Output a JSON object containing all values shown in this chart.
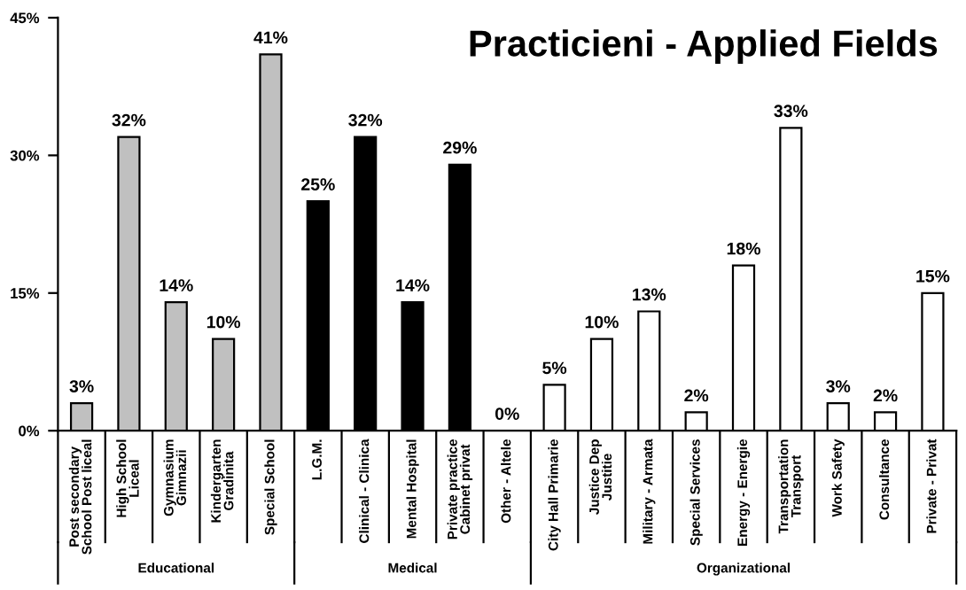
{
  "chart_data": {
    "type": "bar",
    "title": "Practicieni - Applied Fields",
    "categories": [
      "Post secondary\nSchool Post liceal",
      "High School\nLiceal",
      "Gymnasium\nGimnazii",
      "Kindergarten\nGradinita",
      "Special School",
      "L.G.M.",
      "Clinical - Clinica",
      "Mental Hospital",
      "Private practice\nCabinet privat",
      "Other - Altele",
      "City Hall Primarie",
      "Justice Dep\nJustitie",
      "Military - Armata",
      "Special Services",
      "Energy - Energie",
      "Transportation\nTransport",
      "Work Safety",
      "Consultance",
      "Private - Privat"
    ],
    "values": [
      3,
      32,
      14,
      10,
      41,
      25,
      32,
      14,
      29,
      0,
      5,
      10,
      13,
      2,
      18,
      33,
      3,
      2,
      15
    ],
    "colors": [
      "#c0c0c0",
      "#c0c0c0",
      "#c0c0c0",
      "#c0c0c0",
      "#c0c0c0",
      "#000000",
      "#000000",
      "#000000",
      "#000000",
      "#000000",
      "#ffffff",
      "#ffffff",
      "#ffffff",
      "#ffffff",
      "#ffffff",
      "#ffffff",
      "#ffffff",
      "#ffffff",
      "#ffffff"
    ],
    "value_labels": [
      "3%",
      "32%",
      "14%",
      "10%",
      "41%",
      "25%",
      "32%",
      "14%",
      "29%",
      "0%",
      "5%",
      "10%",
      "13%",
      "2%",
      "18%",
      "33%",
      "3%",
      "2%",
      "15%"
    ],
    "ylim": [
      0,
      45
    ],
    "yticks": [
      {
        "value": 0,
        "label": "0%"
      },
      {
        "value": 15,
        "label": "15%"
      },
      {
        "value": 30,
        "label": "30%"
      },
      {
        "value": 45,
        "label": "45%"
      }
    ],
    "annotations": [
      "Educational",
      "Medical",
      "Organizational"
    ],
    "grid": false,
    "legend": false
  }
}
